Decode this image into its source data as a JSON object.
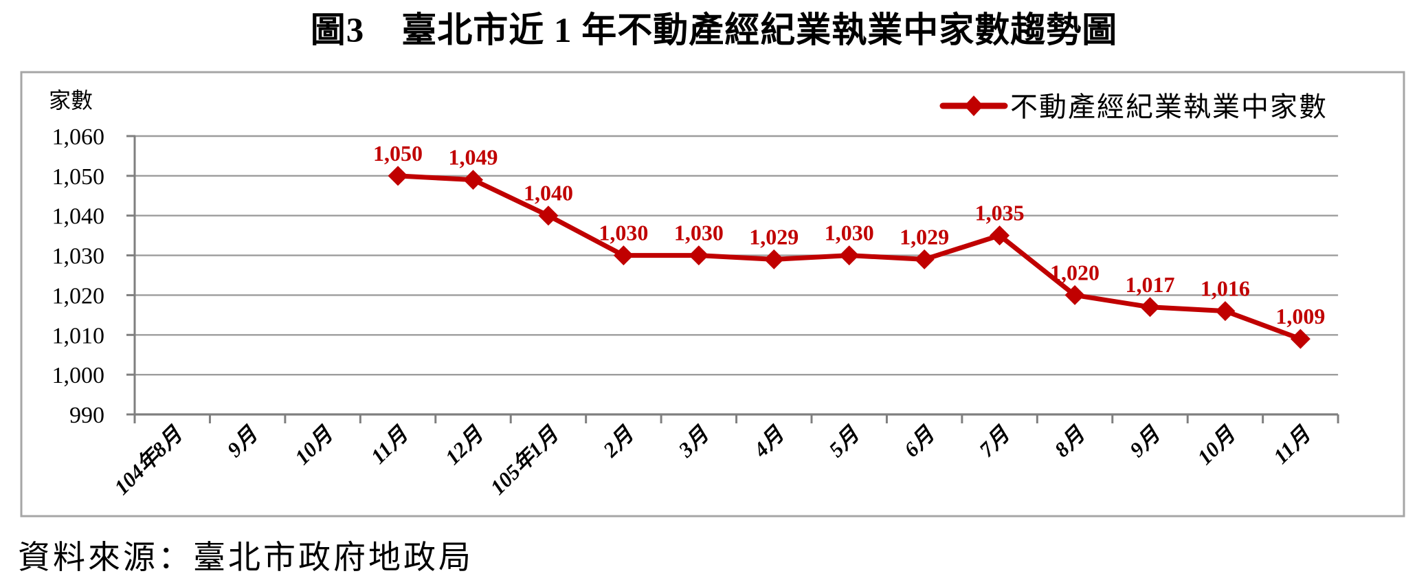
{
  "page": {
    "title_prefix": "圖3",
    "title_main": "臺北市近 1 年不動產經紀業執業中家數趨勢圖",
    "source_note": "資料來源：臺北市政府地政局"
  },
  "chart_data": {
    "type": "line",
    "title": "圖3 臺北市近1年不動產經紀業執業中家數趨勢圖",
    "y_axis_title": "家數",
    "xlabel": "",
    "ylabel": "家數",
    "ylim": [
      990,
      1060
    ],
    "y_tick_step": 10,
    "grid": "horizontal",
    "legend_position": "top-right-inside",
    "categories": [
      "104年8月",
      "9月",
      "10月",
      "11月",
      "12月",
      "105年1月",
      "2月",
      "3月",
      "4月",
      "5月",
      "6月",
      "7月",
      "8月",
      "9月",
      "10月",
      "11月"
    ],
    "y_ticks": [
      "990",
      "1,000",
      "1,010",
      "1,020",
      "1,030",
      "1,040",
      "1,050",
      "1,060"
    ],
    "series": [
      {
        "name": "不動產經紀業執業中家數",
        "marker": "diamond",
        "color": "#C00000",
        "values": [
          null,
          null,
          null,
          1050,
          1049,
          1040,
          1030,
          1030,
          1029,
          1030,
          1029,
          1035,
          1020,
          1017,
          1016,
          1009
        ],
        "labels": [
          null,
          null,
          null,
          "1,050",
          "1,049",
          "1,040",
          "1,030",
          "1,030",
          "1,029",
          "1,030",
          "1,029",
          "1,035",
          "1,020",
          "1,017",
          "1,016",
          "1,009"
        ]
      }
    ]
  },
  "colors": {
    "series_red": "#C00000",
    "grid_gray": "#9C9C9C",
    "axis_gray": "#7F7F7F",
    "frame_gray": "#A6A6A6",
    "text_black": "#000000"
  }
}
